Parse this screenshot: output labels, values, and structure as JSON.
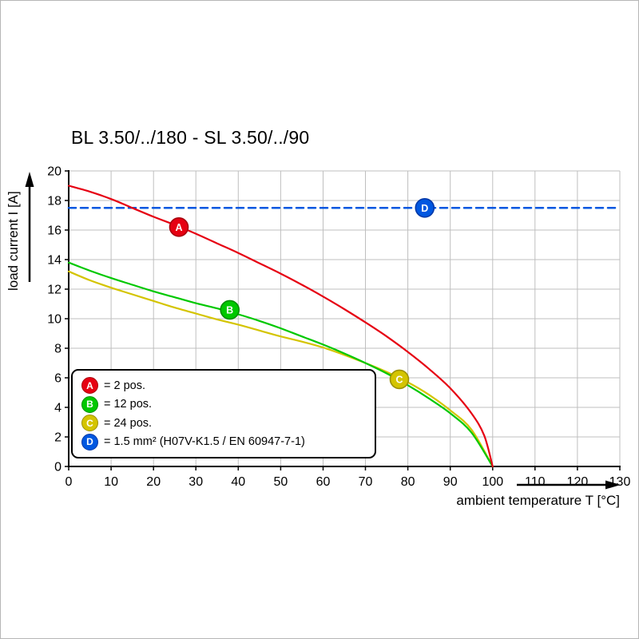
{
  "chart_data": {
    "type": "line",
    "title": "BL 3.50/../180 - SL 3.50/../90",
    "xlabel": "ambient temperature T [°C]",
    "ylabel": "load current I [A]",
    "xlim": [
      0,
      130
    ],
    "ylim": [
      0,
      20
    ],
    "x_ticks": [
      0,
      10,
      20,
      30,
      40,
      50,
      60,
      70,
      80,
      90,
      100,
      110,
      120,
      130
    ],
    "y_ticks": [
      0,
      2,
      4,
      6,
      8,
      10,
      12,
      14,
      16,
      18,
      20
    ],
    "grid": true,
    "grid_color": "#bfbfbf",
    "axis_color": "#000000",
    "legend_position": "lower-left",
    "series": [
      {
        "name": "A = 2 pos.",
        "color": "#e60012",
        "dash": false,
        "points": [
          [
            0,
            19
          ],
          [
            5,
            18.6
          ],
          [
            10,
            18.1
          ],
          [
            15,
            17.5
          ],
          [
            20,
            16.9
          ],
          [
            25,
            16.35
          ],
          [
            30,
            15.75
          ],
          [
            35,
            15.1
          ],
          [
            40,
            14.45
          ],
          [
            45,
            13.75
          ],
          [
            50,
            13.05
          ],
          [
            55,
            12.3
          ],
          [
            60,
            11.5
          ],
          [
            65,
            10.65
          ],
          [
            70,
            9.75
          ],
          [
            75,
            8.8
          ],
          [
            80,
            7.75
          ],
          [
            85,
            6.6
          ],
          [
            90,
            5.3
          ],
          [
            95,
            3.6
          ],
          [
            98,
            2.1
          ],
          [
            100,
            0
          ]
        ]
      },
      {
        "name": "B = 12 pos.",
        "color": "#00c800",
        "dash": false,
        "points": [
          [
            0,
            13.8
          ],
          [
            5,
            13.25
          ],
          [
            10,
            12.75
          ],
          [
            15,
            12.3
          ],
          [
            20,
            11.85
          ],
          [
            25,
            11.45
          ],
          [
            30,
            11.05
          ],
          [
            35,
            10.7
          ],
          [
            40,
            10.3
          ],
          [
            45,
            9.85
          ],
          [
            50,
            9.35
          ],
          [
            55,
            8.8
          ],
          [
            60,
            8.25
          ],
          [
            65,
            7.65
          ],
          [
            70,
            7.0
          ],
          [
            75,
            6.3
          ],
          [
            80,
            5.5
          ],
          [
            85,
            4.6
          ],
          [
            90,
            3.6
          ],
          [
            95,
            2.3
          ],
          [
            100,
            0
          ]
        ]
      },
      {
        "name": "C = 24 pos.",
        "color": "#d4c400",
        "dash": false,
        "points": [
          [
            0,
            13.2
          ],
          [
            5,
            12.6
          ],
          [
            10,
            12.1
          ],
          [
            15,
            11.65
          ],
          [
            20,
            11.2
          ],
          [
            25,
            10.75
          ],
          [
            30,
            10.35
          ],
          [
            35,
            9.95
          ],
          [
            40,
            9.6
          ],
          [
            45,
            9.2
          ],
          [
            50,
            8.8
          ],
          [
            55,
            8.45
          ],
          [
            60,
            8.05
          ],
          [
            65,
            7.55
          ],
          [
            70,
            7.0
          ],
          [
            75,
            6.4
          ],
          [
            80,
            5.7
          ],
          [
            85,
            4.85
          ],
          [
            90,
            3.8
          ],
          [
            95,
            2.5
          ],
          [
            100,
            0
          ]
        ]
      },
      {
        "name": "D = 1.5 mm² (H07V-K1.5 / EN 60947-7-1)",
        "color": "#0057e0",
        "dash": true,
        "points": [
          [
            0,
            17.5
          ],
          [
            130,
            17.5
          ]
        ]
      }
    ],
    "markers": [
      {
        "key": "A",
        "x": 26,
        "y": 16.2,
        "fill": "#e60012",
        "stroke": "#a8000d"
      },
      {
        "key": "B",
        "x": 38,
        "y": 10.6,
        "fill": "#00c800",
        "stroke": "#008e00"
      },
      {
        "key": "C",
        "x": 78,
        "y": 5.9,
        "fill": "#d4c400",
        "stroke": "#9c9000"
      },
      {
        "key": "D",
        "x": 84,
        "y": 17.5,
        "fill": "#0057e0",
        "stroke": "#0038a8"
      }
    ]
  },
  "legend": {
    "items": [
      {
        "key": "A",
        "label": "= 2 pos.",
        "color": "#e60012",
        "border": "#a8000d"
      },
      {
        "key": "B",
        "label": "= 12 pos.",
        "color": "#00c800",
        "border": "#008e00"
      },
      {
        "key": "C",
        "label": "= 24 pos.",
        "color": "#d4c400",
        "border": "#9c9000"
      },
      {
        "key": "D",
        "label": "= 1.5 mm² (H07V-K1.5 / EN 60947-7-1)",
        "color": "#0057e0",
        "border": "#0038a8"
      }
    ]
  }
}
